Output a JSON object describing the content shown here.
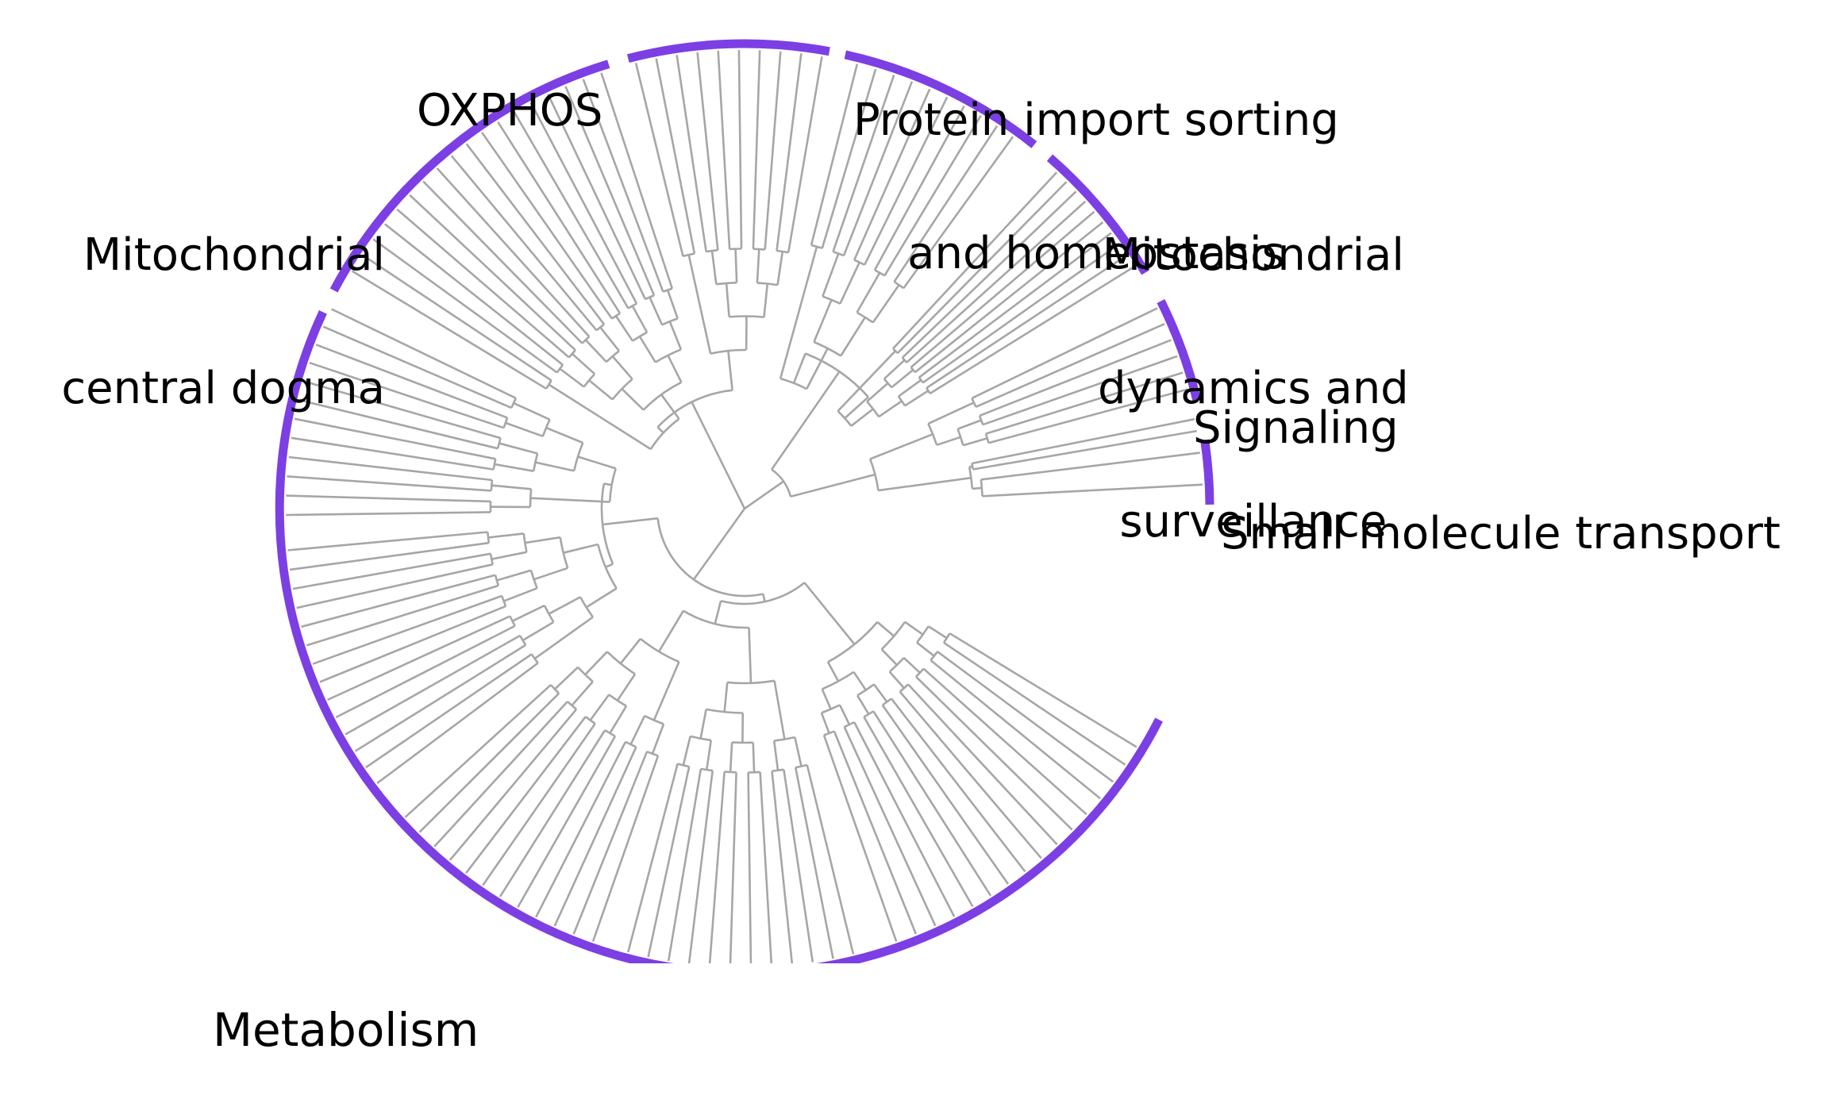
{
  "colors": {
    "branch": "#a6a6a6",
    "category_arc": "#7c3fe4",
    "text": "#000000"
  },
  "categories": [
    {
      "id": "oxphos",
      "label_lines": [
        "OXPHOS"
      ]
    },
    {
      "id": "protein-import",
      "label_lines": [
        "Protein import sorting",
        "and homeostasis"
      ]
    },
    {
      "id": "dynamics",
      "label_lines": [
        "Mitochondrial",
        "dynamics and",
        "surveillance"
      ]
    },
    {
      "id": "signaling",
      "label_lines": [
        "Signaling"
      ]
    },
    {
      "id": "small-molecule",
      "label_lines": [
        "Small molecule transport"
      ]
    },
    {
      "id": "metabolism",
      "label_lines": [
        "Metabolism"
      ]
    },
    {
      "id": "central-dogma",
      "label_lines": [
        "Mitochondrial",
        "central dogma"
      ]
    }
  ]
}
